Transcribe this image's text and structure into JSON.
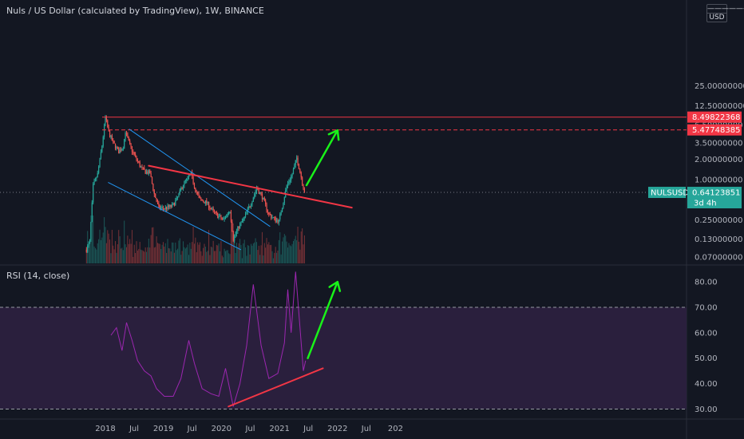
{
  "header": {
    "title": "Nuls / US Dollar (calculated by TradingView), 1W, BINANCE",
    "currency_line1": "——————",
    "currency_line2": "USD"
  },
  "rsi_panel": {
    "title": "RSI (14, close)"
  },
  "colors": {
    "background": "#131722",
    "up": "#26a69a",
    "down": "#ef5350",
    "rsi_line": "#9c27b0",
    "rsi_band": "#2a1f3d",
    "trend_red": "#f23645",
    "trend_blue": "#2196f3",
    "arrow_green": "#19f219"
  },
  "chart_data": [
    {
      "type": "candlestick",
      "symbol": "NULSUSD",
      "scale": "log",
      "y_ticks": [
        25.0,
        12.5,
        6.5,
        3.5,
        2.0,
        1.0,
        0.25,
        0.13,
        0.07
      ],
      "y_tick_labels": [
        "25.00000000",
        "12.50000000",
        "6.50000000",
        "3.50000000",
        "2.00000000",
        "1.00000000",
        "0.25000000",
        "0.13000000",
        "0.07000000"
      ],
      "x_ticks": [
        "2018",
        "Jul",
        "2019",
        "Jul",
        "2020",
        "Jul",
        "2021",
        "Jul",
        "2022",
        "Jul",
        "202"
      ],
      "x_tick_dates": [
        "2018-01-01",
        "2018-07-01",
        "2019-01-01",
        "2019-07-01",
        "2020-01-01",
        "2020-07-01",
        "2021-01-01",
        "2021-07-01",
        "2022-01-01",
        "2022-07-01",
        "2023-01-01"
      ],
      "price_path": [
        [
          "2017-09-04",
          0.09
        ],
        [
          "2017-09-25",
          0.12
        ],
        [
          "2017-10-16",
          0.8
        ],
        [
          "2017-11-13",
          1.2
        ],
        [
          "2017-12-11",
          3.2
        ],
        [
          "2018-01-01",
          8.5
        ],
        [
          "2018-01-22",
          5.0
        ],
        [
          "2018-02-19",
          3.5
        ],
        [
          "2018-03-26",
          2.6
        ],
        [
          "2018-04-23",
          3.1
        ],
        [
          "2018-05-07",
          5.2
        ],
        [
          "2018-06-04",
          3.2
        ],
        [
          "2018-07-02",
          2.3
        ],
        [
          "2018-08-13",
          1.5
        ],
        [
          "2018-09-10",
          1.3
        ],
        [
          "2018-10-08",
          1.25
        ],
        [
          "2018-11-05",
          0.6
        ],
        [
          "2018-12-03",
          0.38
        ],
        [
          "2019-01-07",
          0.37
        ],
        [
          "2019-02-25",
          0.4
        ],
        [
          "2019-03-25",
          0.5
        ],
        [
          "2019-05-06",
          0.85
        ],
        [
          "2019-06-24",
          1.2
        ],
        [
          "2019-07-22",
          0.7
        ],
        [
          "2019-08-19",
          0.5
        ],
        [
          "2019-09-30",
          0.45
        ],
        [
          "2019-11-11",
          0.33
        ],
        [
          "2019-12-16",
          0.28
        ],
        [
          "2020-01-13",
          0.25
        ],
        [
          "2020-02-24",
          0.35
        ],
        [
          "2020-03-16",
          0.13
        ],
        [
          "2020-04-20",
          0.2
        ],
        [
          "2020-05-18",
          0.25
        ],
        [
          "2020-07-06",
          0.45
        ],
        [
          "2020-08-10",
          0.75
        ],
        [
          "2020-09-14",
          0.55
        ],
        [
          "2020-10-26",
          0.3
        ],
        [
          "2020-12-07",
          0.25
        ],
        [
          "2020-12-28",
          0.24
        ],
        [
          "2021-01-18",
          0.4
        ],
        [
          "2021-02-15",
          0.8
        ],
        [
          "2021-03-22",
          1.2
        ],
        [
          "2021-04-19",
          2.1
        ],
        [
          "2021-05-10",
          1.3
        ],
        [
          "2021-06-07",
          0.64
        ]
      ],
      "last_price": {
        "label": "NULSUSD",
        "value": "0.64123851",
        "value_num": 0.64123851,
        "countdown": "3d 4h"
      },
      "levels": [
        {
          "value": 8.49822368,
          "label": "8.49822368",
          "style": "solid"
        },
        {
          "value": 5.47748385,
          "label": "5.47748385",
          "style": "dashed"
        }
      ],
      "drawings": {
        "red_trendline": [
          [
            "2018-10-01",
            1.6
          ],
          [
            "2022-04-01",
            0.38
          ]
        ],
        "blue_channel_upper": [
          [
            "2018-06-01",
            5.6
          ],
          [
            "2020-11-01",
            0.2
          ]
        ],
        "blue_channel_lower": [
          [
            "2018-01-20",
            0.9
          ],
          [
            "2020-05-01",
            0.09
          ]
        ],
        "green_arrow": [
          [
            "2021-06-20",
            0.82
          ],
          [
            "2022-01-01",
            5.4
          ]
        ]
      }
    },
    {
      "type": "line",
      "name": "RSI (14, close)",
      "ylim": [
        27,
        86
      ],
      "y_ticks": [
        80,
        70,
        60,
        50,
        40,
        30
      ],
      "y_tick_labels": [
        "80.00",
        "70.00",
        "60.00",
        "50.00",
        "40.00",
        "30.00"
      ],
      "band": [
        30,
        70
      ],
      "series": [
        [
          "2018-02-05",
          59
        ],
        [
          "2018-03-12",
          62
        ],
        [
          "2018-04-16",
          53
        ],
        [
          "2018-05-14",
          64
        ],
        [
          "2018-06-18",
          57
        ],
        [
          "2018-07-23",
          49
        ],
        [
          "2018-09-03",
          45
        ],
        [
          "2018-10-15",
          43
        ],
        [
          "2018-11-19",
          38
        ],
        [
          "2019-01-07",
          35
        ],
        [
          "2019-03-04",
          35
        ],
        [
          "2019-04-22",
          42
        ],
        [
          "2019-06-10",
          57
        ],
        [
          "2019-07-15",
          48
        ],
        [
          "2019-09-02",
          38
        ],
        [
          "2019-10-28",
          36
        ],
        [
          "2019-12-16",
          35
        ],
        [
          "2020-01-27",
          46
        ],
        [
          "2020-03-16",
          31
        ],
        [
          "2020-04-27",
          40
        ],
        [
          "2020-06-08",
          55
        ],
        [
          "2020-07-20",
          79
        ],
        [
          "2020-09-07",
          55
        ],
        [
          "2020-10-26",
          42
        ],
        [
          "2020-12-21",
          44
        ],
        [
          "2021-02-01",
          56
        ],
        [
          "2021-02-22",
          77
        ],
        [
          "2021-03-15",
          60
        ],
        [
          "2021-04-12",
          84
        ],
        [
          "2021-05-10",
          62
        ],
        [
          "2021-05-31",
          45
        ],
        [
          "2021-06-14",
          49
        ]
      ],
      "drawings": {
        "red_trendline": [
          [
            "2020-02-15",
            31
          ],
          [
            "2021-10-01",
            46
          ]
        ],
        "green_arrow": [
          [
            "2021-06-28",
            50
          ],
          [
            "2022-01-01",
            80
          ]
        ]
      }
    }
  ]
}
